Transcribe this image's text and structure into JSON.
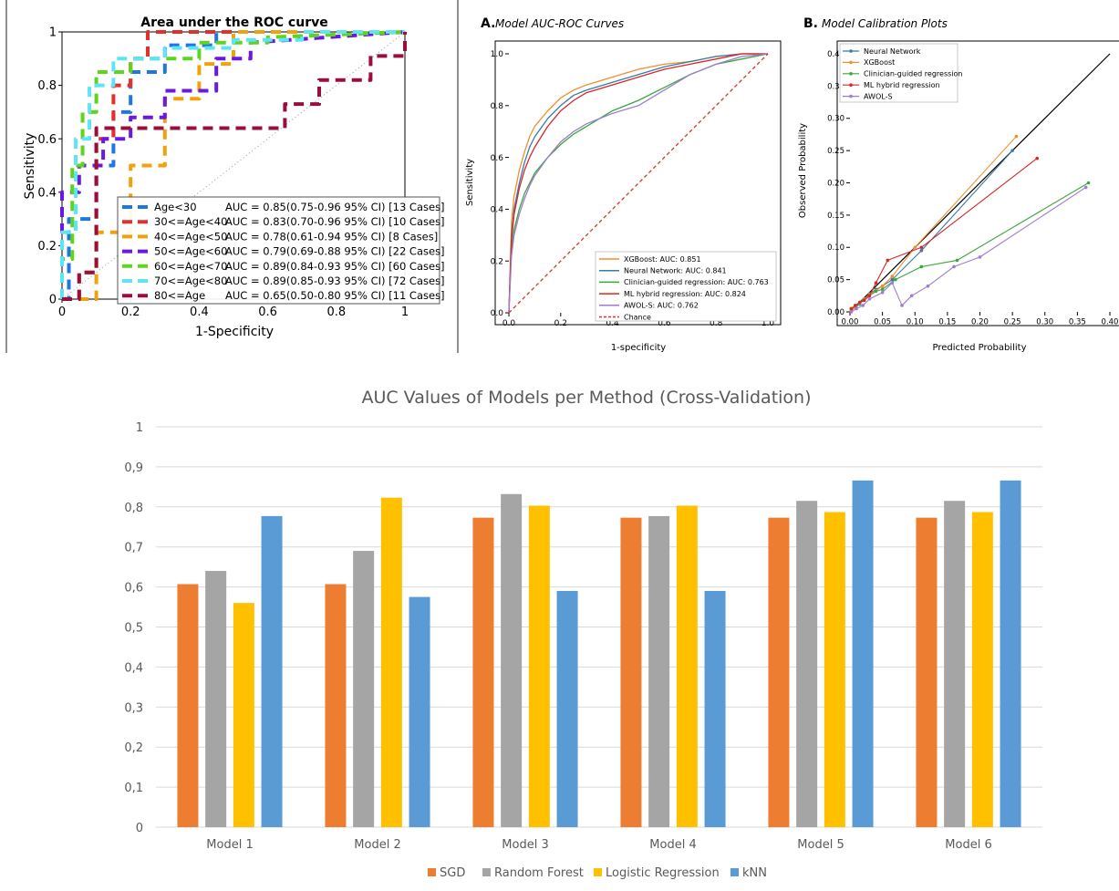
{
  "chart_data": [
    {
      "id": "roc-age",
      "type": "line",
      "title": "Area under the ROC curve",
      "xlabel": "1-Specificity",
      "ylabel": "Sensitivity",
      "xlim": [
        0,
        1
      ],
      "ylim": [
        0,
        1
      ],
      "xticks": [
        "0",
        "0.2",
        "0.4",
        "0.6",
        "0.8",
        "1"
      ],
      "yticks": [
        "0",
        "0.2",
        "0.4",
        "0.6",
        "0.8",
        "1"
      ],
      "legend_position": "bottom-right",
      "series": [
        {
          "name": "Age<30",
          "auc_text": "AUC = 0.85(0.75-0.96 95% CI) [13 Cases]",
          "color": "#1f77e4",
          "x": [
            0,
            0.02,
            0.02,
            0.1,
            0.1,
            0.15,
            0.15,
            0.2,
            0.2,
            0.3,
            0.3,
            0.45,
            0.45,
            1
          ],
          "y": [
            0,
            0,
            0.3,
            0.3,
            0.5,
            0.5,
            0.7,
            0.7,
            0.85,
            0.85,
            0.95,
            0.95,
            1,
            1
          ]
        },
        {
          "name": "30<=Age<40",
          "auc_text": "AUC = 0.83(0.70-0.96 95% CI) [10 Cases]",
          "color": "#e4302a",
          "x": [
            0,
            0.05,
            0.05,
            0.1,
            0.1,
            0.15,
            0.15,
            0.2,
            0.2,
            0.25,
            0.25,
            1
          ],
          "y": [
            0,
            0,
            0.1,
            0.1,
            0.6,
            0.6,
            0.8,
            0.8,
            0.9,
            0.9,
            1,
            1
          ]
        },
        {
          "name": "40<=Age<50",
          "auc_text": "AUC = 0.78(0.61-0.94 95% CI) [8 Cases]",
          "color": "#f0a20a",
          "x": [
            0,
            0.1,
            0.1,
            0.2,
            0.2,
            0.3,
            0.3,
            0.4,
            0.4,
            0.5,
            0.5,
            1
          ],
          "y": [
            0,
            0,
            0.25,
            0.25,
            0.5,
            0.5,
            0.75,
            0.75,
            0.88,
            0.88,
            1,
            1
          ]
        },
        {
          "name": "50<=Age<60",
          "auc_text": "AUC = 0.79(0.69-0.88 95% CI) [22 Cases]",
          "color": "#6a19e0",
          "x": [
            0,
            0,
            0.05,
            0.05,
            0.12,
            0.12,
            0.2,
            0.2,
            0.3,
            0.3,
            0.45,
            0.45,
            0.55,
            0.55,
            1
          ],
          "y": [
            0,
            0.4,
            0.4,
            0.5,
            0.5,
            0.6,
            0.6,
            0.68,
            0.68,
            0.78,
            0.78,
            0.9,
            0.9,
            0.96,
            1
          ]
        },
        {
          "name": "60<=Age<70",
          "auc_text": "AUC = 0.89(0.84-0.93 95% CI) [60 Cases]",
          "color": "#5ed51c",
          "x": [
            0,
            0,
            0.03,
            0.03,
            0.06,
            0.06,
            0.1,
            0.1,
            0.2,
            0.2,
            0.4,
            0.4,
            0.6,
            0.6,
            1
          ],
          "y": [
            0,
            0.15,
            0.15,
            0.5,
            0.5,
            0.7,
            0.7,
            0.85,
            0.85,
            0.9,
            0.9,
            0.96,
            0.96,
            0.98,
            1
          ]
        },
        {
          "name": "70<=Age<80",
          "auc_text": "AUC = 0.89(0.85-0.93 95% CI) [72 Cases]",
          "color": "#5ee5f5",
          "x": [
            0,
            0,
            0.04,
            0.04,
            0.08,
            0.08,
            0.15,
            0.15,
            0.3,
            0.3,
            0.5,
            0.5,
            0.7,
            0.7,
            1
          ],
          "y": [
            0,
            0.25,
            0.25,
            0.6,
            0.6,
            0.8,
            0.8,
            0.9,
            0.9,
            0.94,
            0.94,
            0.97,
            0.97,
            1,
            1
          ]
        },
        {
          "name": "80<=Age",
          "auc_text": "AUC = 0.65(0.50-0.80 95% CI) [11 Cases]",
          "color": "#9a0f3a",
          "x": [
            0,
            0.05,
            0.05,
            0.1,
            0.1,
            0.2,
            0.2,
            0.3,
            0.3,
            0.45,
            0.45,
            0.65,
            0.65,
            0.75,
            0.75,
            0.9,
            0.9,
            1,
            1
          ],
          "y": [
            0,
            0,
            0.1,
            0.1,
            0.64,
            0.64,
            0.64,
            0.64,
            0.64,
            0.64,
            0.64,
            0.64,
            0.73,
            0.73,
            0.82,
            0.82,
            0.91,
            0.91,
            1
          ]
        }
      ]
    },
    {
      "id": "model-roc",
      "type": "line",
      "title": "Model AUC-ROC Curves",
      "panel_label": "A.",
      "xlabel": "1-specificity",
      "ylabel": "Sensitivity",
      "xlim": [
        0,
        1
      ],
      "ylim": [
        0,
        1
      ],
      "xticks": [
        "0.0",
        "0.2",
        "0.4",
        "0.6",
        "0.8",
        "1.0"
      ],
      "yticks": [
        "0.0",
        "0.2",
        "0.4",
        "0.6",
        "0.8",
        "1.0"
      ],
      "legend_position": "bottom-right",
      "series": [
        {
          "name": "XGBoost: AUC: 0.851",
          "color": "#f28e2b",
          "x": [
            0,
            0.01,
            0.02,
            0.04,
            0.06,
            0.08,
            0.1,
            0.15,
            0.2,
            0.25,
            0.3,
            0.4,
            0.5,
            0.6,
            0.7,
            0.8,
            0.9,
            1
          ],
          "y": [
            0,
            0.35,
            0.45,
            0.55,
            0.62,
            0.68,
            0.72,
            0.78,
            0.83,
            0.86,
            0.88,
            0.91,
            0.94,
            0.96,
            0.97,
            0.99,
            1,
            1
          ]
        },
        {
          "name": "Neural Network: AUC: 0.841",
          "color": "#3a7aa8",
          "x": [
            0,
            0.01,
            0.02,
            0.04,
            0.06,
            0.08,
            0.1,
            0.15,
            0.2,
            0.25,
            0.3,
            0.4,
            0.5,
            0.6,
            0.7,
            0.8,
            0.9,
            1
          ],
          "y": [
            0,
            0.3,
            0.4,
            0.5,
            0.58,
            0.64,
            0.68,
            0.75,
            0.8,
            0.84,
            0.86,
            0.89,
            0.92,
            0.95,
            0.97,
            0.99,
            1,
            1
          ]
        },
        {
          "name": "Clinician-guided regression: AUC: 0.763",
          "color": "#3aa83a",
          "x": [
            0,
            0.01,
            0.02,
            0.04,
            0.06,
            0.08,
            0.1,
            0.15,
            0.2,
            0.25,
            0.3,
            0.4,
            0.5,
            0.6,
            0.7,
            0.8,
            0.9,
            1
          ],
          "y": [
            0,
            0.25,
            0.32,
            0.4,
            0.46,
            0.5,
            0.54,
            0.6,
            0.65,
            0.69,
            0.72,
            0.78,
            0.82,
            0.87,
            0.92,
            0.96,
            0.98,
            1
          ]
        },
        {
          "name": "ML hybrid regression: AUC: 0.824",
          "color": "#d62728",
          "x": [
            0,
            0.01,
            0.02,
            0.04,
            0.06,
            0.08,
            0.1,
            0.15,
            0.2,
            0.25,
            0.3,
            0.4,
            0.5,
            0.6,
            0.7,
            0.8,
            0.9,
            1
          ],
          "y": [
            0,
            0.28,
            0.38,
            0.48,
            0.55,
            0.6,
            0.64,
            0.72,
            0.78,
            0.82,
            0.85,
            0.88,
            0.91,
            0.94,
            0.96,
            0.98,
            1,
            1
          ]
        },
        {
          "name": "AWOL-S: AUC: 0.762",
          "color": "#a07bd0",
          "x": [
            0,
            0.01,
            0.02,
            0.04,
            0.06,
            0.08,
            0.1,
            0.15,
            0.2,
            0.25,
            0.3,
            0.4,
            0.5,
            0.6,
            0.7,
            0.8,
            0.9,
            1
          ],
          "y": [
            0,
            0.22,
            0.3,
            0.38,
            0.44,
            0.49,
            0.53,
            0.6,
            0.66,
            0.7,
            0.73,
            0.77,
            0.8,
            0.86,
            0.92,
            0.96,
            0.99,
            1
          ]
        },
        {
          "name": "Chance",
          "color": "#e0302a",
          "dashed": true,
          "x": [
            0,
            1
          ],
          "y": [
            0,
            1
          ]
        }
      ]
    },
    {
      "id": "calibration",
      "type": "line",
      "title": "Model Calibration Plots",
      "panel_label": "B.",
      "xlabel": "Predicted Probability",
      "ylabel": "Observed Probability",
      "xlim": [
        0,
        0.4
      ],
      "ylim": [
        0,
        0.4
      ],
      "xticks": [
        "0.00",
        "0.05",
        "0.10",
        "0.15",
        "0.20",
        "0.25",
        "0.30",
        "0.35",
        "0.40"
      ],
      "yticks": [
        "0.00",
        "0.05",
        "0.10",
        "0.15",
        "0.20",
        "0.25",
        "0.30",
        "0.35",
        "0.40"
      ],
      "legend_position": "top-left",
      "series": [
        {
          "name": "Neural Network",
          "color": "#3a7aa8",
          "x": [
            0.002,
            0.008,
            0.015,
            0.022,
            0.03,
            0.04,
            0.05,
            0.065,
            0.11,
            0.25
          ],
          "y": [
            0.003,
            0.007,
            0.012,
            0.02,
            0.028,
            0.035,
            0.04,
            0.05,
            0.095,
            0.25
          ]
        },
        {
          "name": "XGBoost",
          "color": "#f28e2b",
          "x": [
            0.002,
            0.008,
            0.015,
            0.022,
            0.03,
            0.04,
            0.05,
            0.065,
            0.1,
            0.256
          ],
          "y": [
            0.002,
            0.008,
            0.014,
            0.02,
            0.027,
            0.033,
            0.04,
            0.055,
            0.1,
            0.272
          ]
        },
        {
          "name": "Clinician-guided regression",
          "color": "#3aa83a",
          "x": [
            0.002,
            0.01,
            0.02,
            0.03,
            0.04,
            0.05,
            0.07,
            0.11,
            0.165,
            0.367
          ],
          "y": [
            0.005,
            0.01,
            0.018,
            0.025,
            0.032,
            0.035,
            0.05,
            0.07,
            0.08,
            0.2
          ]
        },
        {
          "name": "ML hybrid regression",
          "color": "#d62728",
          "x": [
            0.002,
            0.008,
            0.015,
            0.022,
            0.03,
            0.04,
            0.058,
            0.11,
            0.288
          ],
          "y": [
            0.005,
            0.01,
            0.015,
            0.018,
            0.025,
            0.045,
            0.08,
            0.1,
            0.238
          ]
        },
        {
          "name": "AWOL-S",
          "color": "#a07bd0",
          "x": [
            0.002,
            0.01,
            0.02,
            0.03,
            0.05,
            0.065,
            0.08,
            0.095,
            0.12,
            0.16,
            0.2,
            0.363
          ],
          "y": [
            0,
            0.005,
            0.01,
            0.02,
            0.03,
            0.045,
            0.01,
            0.025,
            0.04,
            0.07,
            0.085,
            0.193
          ]
        }
      ],
      "reference_line": {
        "x": [
          0,
          0.4
        ],
        "y": [
          0,
          0.4
        ],
        "color": "#000000"
      }
    },
    {
      "id": "auc-bars",
      "type": "bar",
      "title": "AUC Values of Models per Method (Cross-Validation)",
      "categories": [
        "Model 1",
        "Model 2",
        "Model 3",
        "Model 4",
        "Model 5",
        "Model 6"
      ],
      "ylim": [
        0,
        1
      ],
      "yticks": [
        "0",
        "0,1",
        "0,2",
        "0,3",
        "0,4",
        "0,5",
        "0,6",
        "0,7",
        "0,8",
        "0,9",
        "1"
      ],
      "grid": true,
      "legend_position": "bottom",
      "series": [
        {
          "name": "SGD",
          "color": "#ed7d31",
          "values": [
            0.607,
            0.607,
            0.773,
            0.773,
            0.773,
            0.773
          ]
        },
        {
          "name": "Random Forest",
          "color": "#a5a5a5",
          "values": [
            0.64,
            0.69,
            0.832,
            0.777,
            0.815,
            0.815
          ]
        },
        {
          "name": "Logistic Regression",
          "color": "#ffc000",
          "values": [
            0.56,
            0.823,
            0.803,
            0.803,
            0.787,
            0.787
          ]
        },
        {
          "name": "kNN",
          "color": "#5b9bd5",
          "values": [
            0.777,
            0.575,
            0.59,
            0.59,
            0.866,
            0.866
          ]
        }
      ]
    }
  ]
}
